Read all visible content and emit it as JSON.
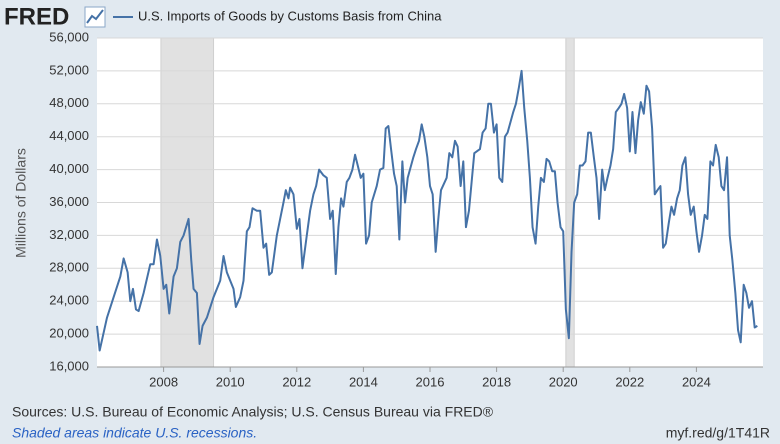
{
  "chart_data": {
    "type": "line",
    "logo": "FRED",
    "title": "U.S. Imports of Goods by Customs Basis from China",
    "ylabel": "Millions of Dollars",
    "source": "Sources: U.S. Bureau of Economic Analysis; U.S. Census Bureau via FRED®",
    "note": "Shaded areas indicate U.S. recessions.",
    "link": "myf.red/g/1T41R",
    "xlim": [
      2006,
      2026
    ],
    "xticks": [
      2008,
      2010,
      2012,
      2014,
      2016,
      2018,
      2020,
      2022,
      2024
    ],
    "ylim": [
      16000,
      56000
    ],
    "yticks": [
      {
        "value": 16000,
        "label": "16,000"
      },
      {
        "value": 20000,
        "label": "20,000"
      },
      {
        "value": 24000,
        "label": "24,000"
      },
      {
        "value": 28000,
        "label": "28,000"
      },
      {
        "value": 32000,
        "label": "32,000"
      },
      {
        "value": 36000,
        "label": "36,000"
      },
      {
        "value": 40000,
        "label": "40,000"
      },
      {
        "value": 44000,
        "label": "44,000"
      },
      {
        "value": 48000,
        "label": "48,000"
      },
      {
        "value": 52000,
        "label": "52,000"
      },
      {
        "value": 56000,
        "label": "56,000"
      }
    ],
    "grid": true,
    "recessions": [
      [
        2007.92,
        2009.5
      ],
      [
        2020.08,
        2020.33
      ]
    ],
    "series": [
      {
        "name": "U.S. Imports of Goods by Customs Basis from China",
        "color": "#4572a7",
        "x": [
          2006.0,
          2006.08,
          2006.3,
          2006.5,
          2006.7,
          2006.8,
          2006.92,
          2007.0,
          2007.08,
          2007.17,
          2007.25,
          2007.4,
          2007.6,
          2007.7,
          2007.8,
          2007.9,
          2008.0,
          2008.08,
          2008.17,
          2008.3,
          2008.4,
          2008.5,
          2008.6,
          2008.75,
          2008.83,
          2008.9,
          2009.0,
          2009.08,
          2009.17,
          2009.3,
          2009.5,
          2009.6,
          2009.7,
          2009.8,
          2009.9,
          2010.1,
          2010.17,
          2010.3,
          2010.4,
          2010.5,
          2010.58,
          2010.67,
          2010.8,
          2010.9,
          2011.0,
          2011.08,
          2011.17,
          2011.25,
          2011.4,
          2011.5,
          2011.6,
          2011.67,
          2011.75,
          2011.8,
          2011.9,
          2012.0,
          2012.08,
          2012.17,
          2012.3,
          2012.4,
          2012.5,
          2012.58,
          2012.67,
          2012.8,
          2012.9,
          2013.0,
          2013.08,
          2013.17,
          2013.25,
          2013.33,
          2013.4,
          2013.5,
          2013.58,
          2013.67,
          2013.75,
          2013.83,
          2013.92,
          2014.0,
          2014.08,
          2014.17,
          2014.25,
          2014.4,
          2014.5,
          2014.6,
          2014.67,
          2014.75,
          2014.83,
          2014.92,
          2015.0,
          2015.08,
          2015.17,
          2015.25,
          2015.33,
          2015.5,
          2015.58,
          2015.67,
          2015.75,
          2015.83,
          2015.92,
          2016.0,
          2016.08,
          2016.17,
          2016.25,
          2016.33,
          2016.5,
          2016.58,
          2016.67,
          2016.75,
          2016.83,
          2016.92,
          2017.0,
          2017.08,
          2017.17,
          2017.25,
          2017.33,
          2017.5,
          2017.58,
          2017.67,
          2017.75,
          2017.83,
          2017.92,
          2018.0,
          2018.08,
          2018.17,
          2018.25,
          2018.33,
          2018.5,
          2018.58,
          2018.67,
          2018.75,
          2018.83,
          2018.92,
          2019.0,
          2019.08,
          2019.17,
          2019.25,
          2019.33,
          2019.42,
          2019.5,
          2019.58,
          2019.67,
          2019.75,
          2019.83,
          2019.92,
          2020.0,
          2020.08,
          2020.17,
          2020.25,
          2020.33,
          2020.42,
          2020.5,
          2020.58,
          2020.67,
          2020.75,
          2020.83,
          2020.92,
          2021.0,
          2021.08,
          2021.17,
          2021.25,
          2021.33,
          2021.42,
          2021.5,
          2021.58,
          2021.67,
          2021.75,
          2021.83,
          2021.92,
          2022.0,
          2022.08,
          2022.17,
          2022.25,
          2022.33,
          2022.42,
          2022.5,
          2022.58,
          2022.67,
          2022.75,
          2022.83,
          2022.92,
          2023.0,
          2023.08,
          2023.17,
          2023.25,
          2023.33,
          2023.42,
          2023.5,
          2023.58,
          2023.67,
          2023.75,
          2023.83,
          2023.92,
          2024.0,
          2024.08,
          2024.17,
          2024.25,
          2024.33,
          2024.42,
          2024.5,
          2024.58,
          2024.67,
          2024.75,
          2024.83,
          2024.92,
          2025.0,
          2025.08,
          2025.17,
          2025.25,
          2025.33,
          2025.42,
          2025.5,
          2025.58,
          2025.67,
          2025.75,
          2025.83
        ],
        "values": [
          21000,
          18000,
          22000,
          24500,
          27000,
          29200,
          27500,
          24000,
          25500,
          23000,
          22800,
          25000,
          28500,
          28500,
          31500,
          29500,
          25500,
          26000,
          22500,
          27000,
          28000,
          31200,
          32000,
          34000,
          29000,
          25500,
          25000,
          18800,
          21000,
          22000,
          24500,
          25500,
          26500,
          29500,
          27500,
          25500,
          23300,
          24500,
          26500,
          32500,
          33000,
          35300,
          35000,
          35000,
          30500,
          31000,
          27200,
          27500,
          32000,
          34000,
          36000,
          37500,
          36500,
          37800,
          37000,
          32800,
          34000,
          28000,
          32000,
          35000,
          37000,
          38000,
          40000,
          39300,
          39000,
          34000,
          35000,
          27300,
          33000,
          36500,
          35500,
          38500,
          39000,
          40000,
          41800,
          40500,
          39000,
          39500,
          31000,
          32000,
          36000,
          38000,
          40000,
          40200,
          45000,
          45300,
          42500,
          39500,
          38000,
          31500,
          41000,
          36000,
          39000,
          41500,
          42500,
          43500,
          45500,
          44000,
          41500,
          38000,
          37000,
          30000,
          34000,
          37500,
          39000,
          42000,
          41500,
          43500,
          42800,
          38000,
          41000,
          33000,
          35000,
          38500,
          42000,
          42500,
          44500,
          45000,
          48000,
          48000,
          44500,
          45500,
          39000,
          38500,
          44000,
          44500,
          47000,
          48000,
          50000,
          52000,
          47500,
          43500,
          39000,
          33000,
          31000,
          35500,
          39000,
          38500,
          41300,
          41000,
          39800,
          39800,
          36000,
          33000,
          32500,
          23000,
          19500,
          30000,
          36000,
          37000,
          40500,
          40500,
          41000,
          44500,
          44500,
          41500,
          39000,
          34000,
          40000,
          37500,
          39000,
          40500,
          42500,
          47000,
          47500,
          48000,
          49200,
          47500,
          42200,
          47000,
          42000,
          46000,
          48200,
          46800,
          50200,
          49500,
          45000,
          37000,
          37500,
          38000,
          30500,
          31000,
          33500,
          35500,
          34500,
          36500,
          37500,
          40500,
          41500,
          37000,
          34500,
          35500,
          32500,
          30000,
          32000,
          34500,
          34000,
          41000,
          40500,
          43000,
          41500,
          38000,
          37500,
          41500,
          32000,
          29000,
          25000,
          20500,
          19000,
          26000,
          25000,
          23200,
          24000,
          20800,
          21000
        ]
      }
    ]
  }
}
